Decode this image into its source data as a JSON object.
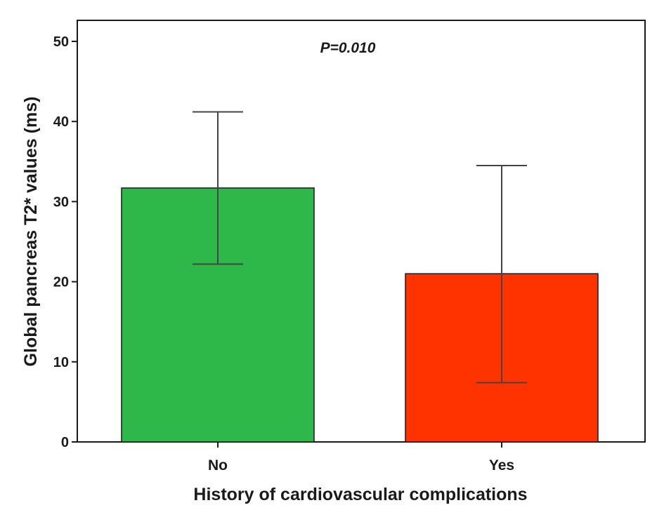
{
  "chart_data": {
    "type": "bar",
    "title": "",
    "xlabel": "History of cardiovascular complications",
    "ylabel": "Global pancreas T2* values (ms)",
    "categories": [
      "No",
      "Yes"
    ],
    "values": [
      31.7,
      21.0
    ],
    "error_bars": [
      {
        "lower": 22.2,
        "upper": 41.2
      },
      {
        "lower": 7.4,
        "upper": 34.5
      }
    ],
    "bar_colors": [
      "#2fb84a",
      "#ff3300"
    ],
    "ylim": [
      0,
      50
    ],
    "yticks": [
      0,
      10,
      20,
      30,
      40,
      50
    ],
    "annotation": "P=0.010",
    "grid": false
  }
}
